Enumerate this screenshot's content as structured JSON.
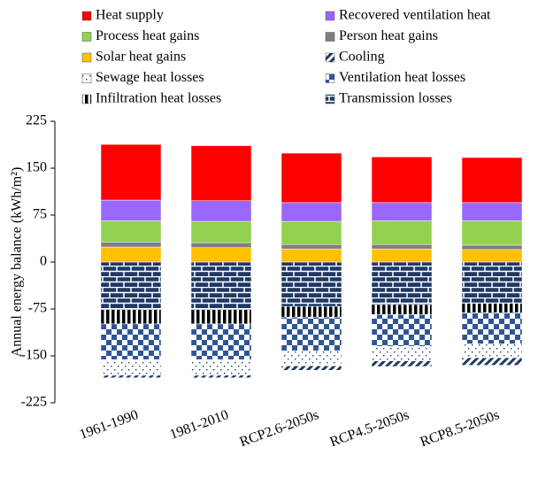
{
  "chart_data": {
    "type": "bar",
    "stacked": true,
    "y_label": "Annual energy balance (kWh/m²)",
    "categories": [
      "1961-1990",
      "1981-2010",
      "RCP2.6-2050s",
      "RCP4.5-2050s",
      "RCP8.5-2050s"
    ],
    "series": [
      {
        "name": "Heat supply",
        "color": "#ff0000",
        "pattern": "solid",
        "values": [
          89,
          88,
          79,
          73,
          72
        ]
      },
      {
        "name": "Recovered ventilation heat",
        "color": "#9966ff",
        "pattern": "solid",
        "values": [
          33,
          33,
          30,
          29,
          29
        ]
      },
      {
        "name": "Process heat gains",
        "color": "#92d050",
        "pattern": "solid",
        "values": [
          34,
          34,
          37,
          38,
          39
        ]
      },
      {
        "name": "Person heat gains",
        "color": "#7f7f7f",
        "pattern": "solid",
        "values": [
          8,
          8,
          7,
          7,
          7
        ]
      },
      {
        "name": "Solar heat gains",
        "color": "#ffc000",
        "pattern": "solid",
        "values": [
          24,
          23,
          21,
          21,
          20
        ]
      },
      {
        "name": "Cooling",
        "color": "#1f3864",
        "pattern": "diagonal",
        "values": [
          -4,
          -4,
          -7,
          -9,
          -12
        ]
      },
      {
        "name": "Sewage heat losses",
        "color": "#1f3864",
        "pattern": "dots",
        "values": [
          -25,
          -25,
          -24,
          -23,
          -22
        ]
      },
      {
        "name": "Ventilation heat losses",
        "color": "#2f5597",
        "pattern": "checker",
        "values": [
          -57,
          -57,
          -54,
          -51,
          -50
        ]
      },
      {
        "name": "Infiltration heat losses",
        "color": "#000000",
        "pattern": "vstripes",
        "values": [
          -23,
          -23,
          -17,
          -16,
          -15
        ]
      },
      {
        "name": "Transmission losses",
        "color": "#1f3864",
        "pattern": "brick",
        "values": [
          -76,
          -76,
          -71,
          -68,
          -66
        ]
      }
    ],
    "ylim": [
      -225,
      225
    ],
    "yticks": [
      -225,
      -150,
      -75,
      0,
      75,
      150,
      225
    ],
    "legend": "top"
  }
}
